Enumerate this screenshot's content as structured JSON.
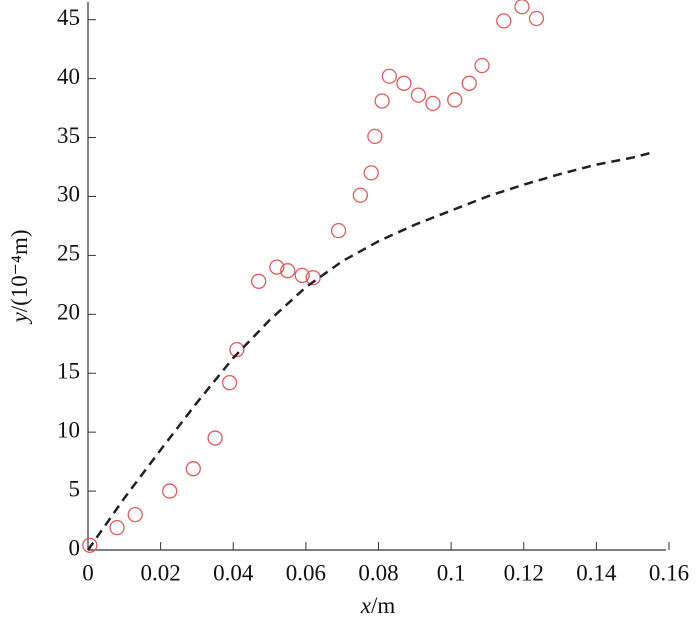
{
  "chart_data": {
    "type": "scatter",
    "x_label": {
      "italic": "x",
      "rest": "/m"
    },
    "y_label": {
      "italic": "y",
      "rest": "/(10⁻⁴m)"
    },
    "xlim": [
      0,
      0.16
    ],
    "ylim": [
      0,
      46.5
    ],
    "xticks": [
      0,
      0.02,
      0.04,
      0.06,
      0.08,
      0.1,
      0.12,
      0.14,
      0.16
    ],
    "yticks": [
      0,
      5,
      10,
      15,
      20,
      25,
      30,
      35,
      40,
      45
    ],
    "series": [
      {
        "type": "scatter",
        "marker": "circle",
        "color": "#e05a5a",
        "x": [
          0.0005,
          0.008,
          0.013,
          0.0225,
          0.029,
          0.035,
          0.039,
          0.041,
          0.047,
          0.052,
          0.055,
          0.059,
          0.062,
          0.069,
          0.075,
          0.078,
          0.079,
          0.081,
          0.083,
          0.087,
          0.091,
          0.095,
          0.101,
          0.105,
          0.1085,
          0.1145,
          0.1195,
          0.1235
        ],
        "values": [
          0.4,
          1.9,
          3.0,
          5.0,
          6.9,
          9.5,
          14.2,
          17.0,
          22.8,
          24.0,
          23.7,
          23.3,
          23.1,
          27.1,
          30.1,
          32.0,
          35.1,
          38.1,
          40.2,
          39.6,
          38.6,
          37.9,
          38.2,
          39.6,
          41.1,
          44.9,
          46.1,
          45.1
        ]
      },
      {
        "type": "line",
        "dashed": true,
        "color": "#222222",
        "x": [
          0,
          0.01,
          0.02,
          0.03,
          0.04,
          0.05,
          0.06,
          0.07,
          0.08,
          0.09,
          0.1,
          0.11,
          0.12,
          0.13,
          0.14,
          0.15,
          0.155
        ],
        "values": [
          0,
          4.4,
          8.5,
          12.5,
          16.3,
          19.5,
          22.3,
          24.5,
          26.2,
          27.6,
          28.8,
          30.0,
          31.0,
          31.9,
          32.7,
          33.3,
          33.7
        ]
      }
    ]
  }
}
